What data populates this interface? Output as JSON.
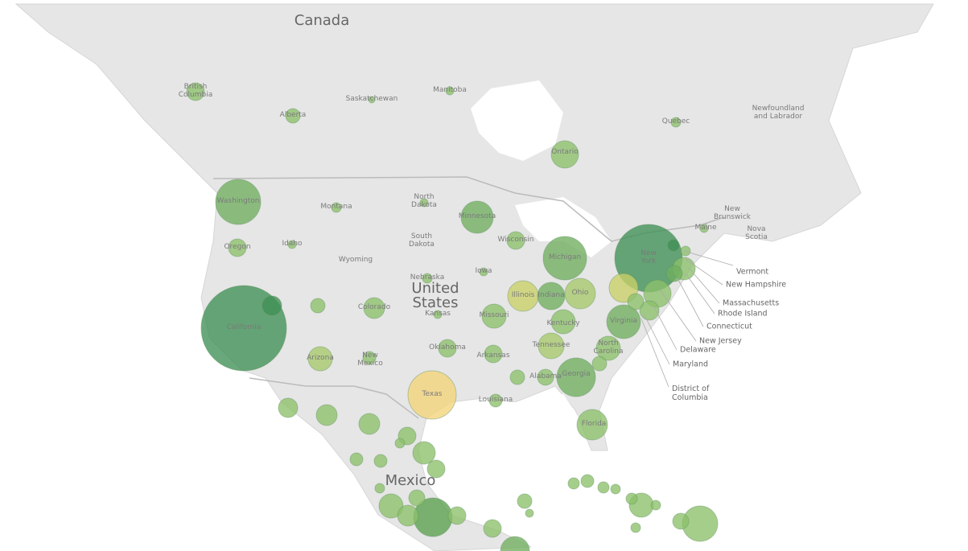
{
  "map": {
    "countries": [
      "Canada",
      "United States",
      "Mexico"
    ],
    "regions": [
      "British Columbia",
      "Alberta",
      "Saskatchewan",
      "Manitoba",
      "Ontario",
      "Quebec",
      "Newfoundland and Labrador",
      "New Brunswick",
      "Nova Scotia",
      "Maine",
      "Washington",
      "Oregon",
      "Idaho",
      "Montana",
      "Wyoming",
      "North Dakota",
      "South Dakota",
      "Minnesota",
      "Wisconsin",
      "Michigan",
      "Iowa",
      "Nebraska",
      "Kansas",
      "Colorado",
      "California",
      "Arizona",
      "New Mexico",
      "Oklahoma",
      "Texas",
      "Arkansas",
      "Louisiana",
      "Missouri",
      "Illinois",
      "Indiana",
      "Ohio",
      "Kentucky",
      "Tennessee",
      "Alabama",
      "Georgia",
      "Florida",
      "North Carolina",
      "Virginia",
      "New York"
    ],
    "callouts": [
      "Vermont",
      "New Hampshire",
      "Massachusetts",
      "Rhode Island",
      "Connecticut",
      "New Jersey",
      "Delaware",
      "Maryland",
      "District of Columbia"
    ]
  }
}
